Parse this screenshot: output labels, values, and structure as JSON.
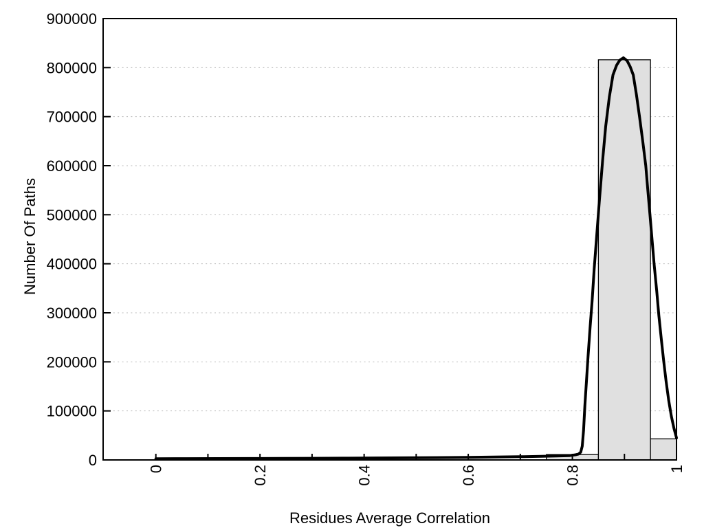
{
  "chart_data": {
    "type": "bar",
    "subtype": "histogram-with-density-curve",
    "title": "",
    "xlabel": "Residues Average Correlation",
    "ylabel": "Number Of Paths",
    "xlim": [
      -0.1013,
      1.0
    ],
    "ylim": [
      0,
      900000
    ],
    "grid": "horizontal-dotted",
    "legend": "none",
    "x_major_ticks": {
      "values": [
        0,
        0.2,
        0.4,
        0.6,
        0.8,
        1
      ],
      "labels": [
        "0",
        "0.2",
        "0.4",
        "0.6",
        "0.8",
        "1"
      ],
      "label_rotation_deg": -90
    },
    "x_minor_tick_values": [
      0,
      0.1,
      0.2,
      0.3,
      0.4,
      0.5,
      0.6,
      0.7,
      0.8,
      0.9,
      1.0
    ],
    "y_ticks": {
      "values": [
        0,
        100000,
        200000,
        300000,
        400000,
        500000,
        600000,
        700000,
        800000,
        900000
      ],
      "labels": [
        "0",
        "100000",
        "200000",
        "300000",
        "400000",
        "500000",
        "600000",
        "700000",
        "800000",
        "900000"
      ]
    },
    "bars": [
      {
        "x0": 0.75,
        "x1": 0.85,
        "value": 11000
      },
      {
        "x0": 0.85,
        "x1": 0.95,
        "value": 816000
      },
      {
        "x0": 0.95,
        "x1": 1.0,
        "value": 43000
      }
    ],
    "curve_points": [
      [
        0.0,
        2500
      ],
      [
        0.06,
        2600
      ],
      [
        0.12,
        2800
      ],
      [
        0.18,
        3000
      ],
      [
        0.24,
        3200
      ],
      [
        0.3,
        3400
      ],
      [
        0.36,
        3700
      ],
      [
        0.42,
        4000
      ],
      [
        0.48,
        4400
      ],
      [
        0.54,
        4800
      ],
      [
        0.6,
        5300
      ],
      [
        0.65,
        5900
      ],
      [
        0.7,
        6600
      ],
      [
        0.74,
        7300
      ],
      [
        0.77,
        8000
      ],
      [
        0.795,
        8800
      ],
      [
        0.806,
        10500
      ],
      [
        0.812,
        12000
      ],
      [
        0.816,
        16000
      ],
      [
        0.819,
        28000
      ],
      [
        0.8215,
        60000
      ],
      [
        0.824,
        110000
      ],
      [
        0.827,
        160000
      ],
      [
        0.83,
        210000
      ],
      [
        0.834,
        270000
      ],
      [
        0.838,
        325000
      ],
      [
        0.842,
        390000
      ],
      [
        0.847,
        460000
      ],
      [
        0.852,
        530000
      ],
      [
        0.858,
        610000
      ],
      [
        0.864,
        680000
      ],
      [
        0.871,
        740000
      ],
      [
        0.878,
        785000
      ],
      [
        0.885,
        805000
      ],
      [
        0.891,
        815000
      ],
      [
        0.898,
        820000
      ],
      [
        0.905,
        814000
      ],
      [
        0.911,
        802000
      ],
      [
        0.917,
        785000
      ],
      [
        0.923,
        745000
      ],
      [
        0.929,
        700000
      ],
      [
        0.935,
        651000
      ],
      [
        0.941,
        600000
      ],
      [
        0.945,
        550000
      ],
      [
        0.949,
        500000
      ],
      [
        0.953,
        450000
      ],
      [
        0.957,
        400000
      ],
      [
        0.962,
        345000
      ],
      [
        0.966,
        295000
      ],
      [
        0.971,
        245000
      ],
      [
        0.975,
        205000
      ],
      [
        0.98,
        160000
      ],
      [
        0.985,
        122000
      ],
      [
        0.99,
        90000
      ],
      [
        0.995,
        65000
      ],
      [
        1.0,
        45000
      ]
    ],
    "colors": {
      "bar_fill": "#e0e0e0",
      "bar_edge": "#000000",
      "curve": "#000000",
      "border": "#000000",
      "grid": "#b8b8b8",
      "text": "#000000",
      "background": "#ffffff"
    },
    "layout": {
      "plot_left": 150,
      "plot_right": 984,
      "plot_top": 27,
      "plot_bottom": 669,
      "x_tick_len": 9,
      "y_tick_len": 11,
      "border_width": 2,
      "tick_width": 2,
      "bar_edge_width": 1.3,
      "curve_width": 4
    }
  }
}
